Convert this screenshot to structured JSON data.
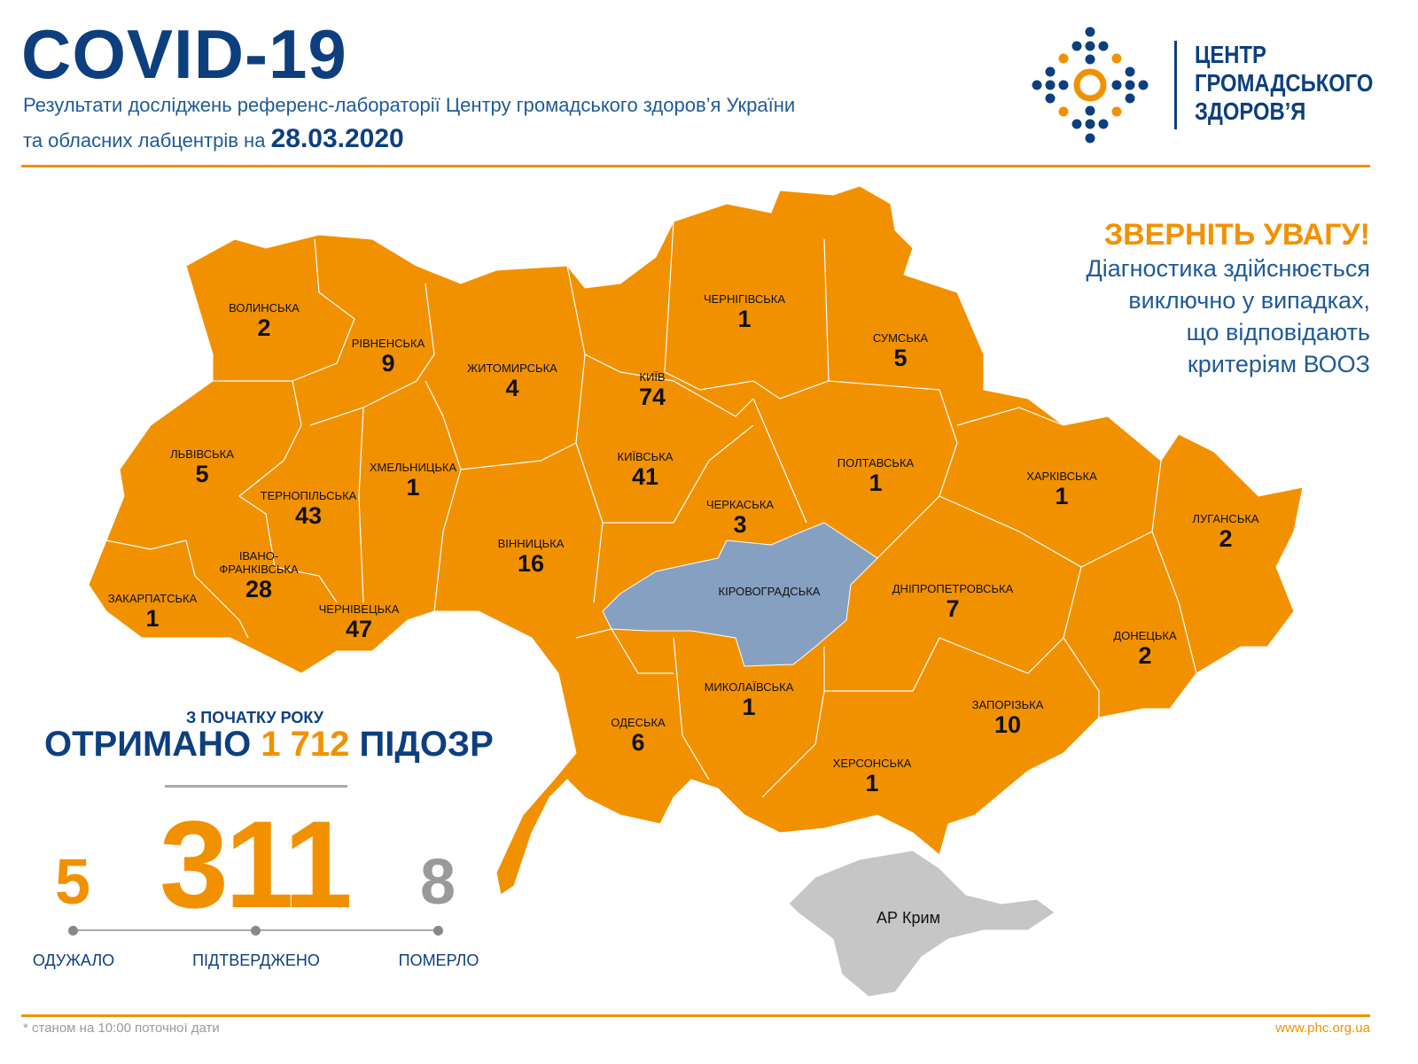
{
  "header": {
    "title": "COVID-19",
    "subtitle_line1": "Результати досліджень референс-лабораторії Центру громадського здоров’я України",
    "subtitle_line2": "та обласних лабцентрів на",
    "date": "28.03.2020"
  },
  "logo": {
    "line1": "ЦЕНТР",
    "line2": "ГРОМАДСЬКОГО",
    "line3": "ЗДОРОВ’Я"
  },
  "notice": {
    "title": "ЗВЕРНІТЬ УВАГУ!",
    "lines": [
      "Діагностика здійснюється",
      "виключно у випадках,",
      "що відповідають",
      "критеріям ВООЗ"
    ]
  },
  "colors": {
    "region": "#f29100",
    "highlight": "#86a0c2",
    "crimea": "#c6c6c6",
    "brand_blue": "#0d3f7f",
    "accent": "#f29100"
  },
  "regions": [
    {
      "name": "ВОЛИНСЬКА",
      "count": "2"
    },
    {
      "name": "РІВНЕНСЬКА",
      "count": "9"
    },
    {
      "name": "ЖИТОМИРСЬКА",
      "count": "4"
    },
    {
      "name": "КИЇВ",
      "count": "74"
    },
    {
      "name": "ЧЕРНІГІВСЬКА",
      "count": "1"
    },
    {
      "name": "СУМСЬКА",
      "count": "5"
    },
    {
      "name": "ЛЬВІВСЬКА",
      "count": "5"
    },
    {
      "name": "ТЕРНОПІЛЬСЬКА",
      "count": "43"
    },
    {
      "name": "ХМЕЛЬНИЦЬКА",
      "count": "1"
    },
    {
      "name": "КИЇВСЬКА",
      "count": "41"
    },
    {
      "name": "ПОЛТАВСЬКА",
      "count": "1"
    },
    {
      "name": "ХАРКІВСЬКА",
      "count": "1"
    },
    {
      "name": "ЛУГАНСЬКА",
      "count": "2"
    },
    {
      "name": "ІВАНО-ФРАНКІВСЬКА",
      "count": "28"
    },
    {
      "name": "ЗАКАРПАТСЬКА",
      "count": "1"
    },
    {
      "name": "ЧЕРНІВЕЦЬКА",
      "count": "47"
    },
    {
      "name": "ВІННИЦЬКА",
      "count": "16"
    },
    {
      "name": "ЧЕРКАСЬКА",
      "count": "3"
    },
    {
      "name": "ДНІПРОПЕТРОВСЬКА",
      "count": "7"
    },
    {
      "name": "ДОНЕЦЬКА",
      "count": "2"
    },
    {
      "name": "МИКОЛАЇВСЬКА",
      "count": "1"
    },
    {
      "name": "ОДЕСЬКА",
      "count": "6"
    },
    {
      "name": "ЗАПОРІЗЬКА",
      "count": "10"
    },
    {
      "name": "ХЕРСОНСЬКА",
      "count": "1"
    },
    {
      "name": "КІРОВОГРАДСЬКА",
      "count": ""
    }
  ],
  "crimea_label": "АР Крим",
  "stats": {
    "since_label": "З ПОЧАТКУ РОКУ",
    "received": "ОТРИМАНО",
    "suspicions": "1 712",
    "suspicions_label": "ПІДОЗР",
    "recovered": "5",
    "recovered_label": "ОДУЖАЛО",
    "confirmed": "311",
    "confirmed_label": "ПІДТВЕРДЖЕНО",
    "died": "8",
    "died_label": "ПОМЕРЛО"
  },
  "footer": {
    "note": "* станом на 10:00 поточної дати",
    "site": "www.phc.org.ua"
  }
}
